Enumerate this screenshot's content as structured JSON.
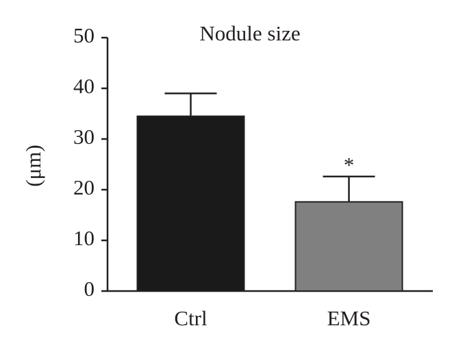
{
  "chart_data": {
    "type": "bar",
    "title": "Nodule size",
    "y_label": "(μm)",
    "categories": [
      "Ctrl",
      "EMS"
    ],
    "values": [
      34.5,
      17.6
    ],
    "errors": [
      4.5,
      5.0
    ],
    "colors": [
      "#1a1a1a",
      "#808080"
    ],
    "annotations": [
      null,
      "*"
    ],
    "ylim": [
      0,
      50
    ],
    "yticks": [
      0,
      10,
      20,
      30,
      40,
      50
    ],
    "grid": false
  }
}
